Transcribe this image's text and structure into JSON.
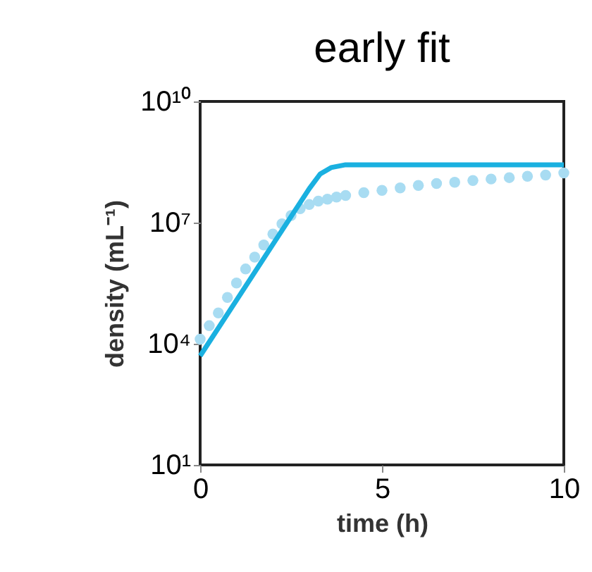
{
  "chart_data": {
    "type": "line",
    "title": "early fit",
    "xlabel": "time (h)",
    "ylabel": "density (mL⁻¹)",
    "log": "y",
    "xlim": [
      0,
      10
    ],
    "xticks": [
      0,
      5,
      10
    ],
    "ylim": [
      10,
      10000000000
    ],
    "yticks": [
      {
        "value": 10,
        "label": "10¹"
      },
      {
        "value": 10000,
        "label": "10⁴"
      },
      {
        "value": 10000000,
        "label": "10⁷"
      },
      {
        "value": 10000000000,
        "label": "10¹⁰"
      }
    ],
    "grid": false,
    "legend": false,
    "series": [
      {
        "type": "scatter",
        "marker": "circle",
        "color": "#a8dcf2",
        "x": [
          0,
          0.25,
          0.5,
          0.75,
          1,
          1.25,
          1.5,
          1.75,
          2,
          2.25,
          2.5,
          2.75,
          3,
          3.25,
          3.5,
          3.75,
          4,
          4.5,
          5,
          5.5,
          6,
          6.5,
          7,
          7.5,
          8,
          8.5,
          9,
          9.5,
          10
        ],
        "values": [
          13000,
          28000,
          58000,
          140000,
          320000,
          710000,
          1400000,
          2800000,
          5200000,
          9300000,
          15000000,
          22000000,
          28000000,
          34000000,
          38000000,
          43000000,
          47000000,
          55000000,
          63000000,
          72000000,
          83000000,
          93000000,
          100000000,
          110000000,
          120000000,
          130000000,
          140000000,
          150000000,
          170000000
        ]
      },
      {
        "type": "line",
        "marker": "none",
        "line_style": "solid",
        "color": "#1ab0e0",
        "x": [
          0,
          1,
          2,
          3,
          3.3,
          3.6,
          4,
          5,
          10
        ],
        "values": [
          5000,
          120000,
          2900000,
          69000000,
          160000000,
          230000000,
          270000000,
          270000000,
          270000000
        ]
      }
    ]
  }
}
